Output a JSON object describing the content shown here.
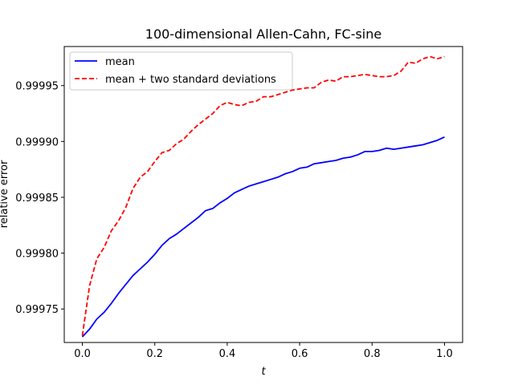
{
  "chart_data": {
    "type": "line",
    "title": "100-dimensional Allen-Cahn, FC-sine",
    "xlabel": "t",
    "ylabel": "relative error",
    "xlim": [
      -0.05,
      1.05
    ],
    "ylim": [
      0.99972,
      0.999985
    ],
    "xticks": [
      0.0,
      0.2,
      0.4,
      0.6,
      0.8,
      1.0
    ],
    "xtick_labels": [
      "0.0",
      "0.2",
      "0.4",
      "0.6",
      "0.8",
      "1.0"
    ],
    "yticks": [
      0.99975,
      0.9998,
      0.99985,
      0.9999,
      0.99995
    ],
    "ytick_labels": [
      "0.99975",
      "0.99980",
      "0.99985",
      "0.99990",
      "0.99995"
    ],
    "grid": false,
    "legend_position": "upper-left",
    "series": [
      {
        "name": "mean",
        "color": "#0000ff",
        "style": "solid",
        "x": [
          0.0,
          0.02,
          0.04,
          0.06,
          0.08,
          0.1,
          0.12,
          0.14,
          0.16,
          0.18,
          0.2,
          0.22,
          0.24,
          0.26,
          0.28,
          0.3,
          0.32,
          0.34,
          0.36,
          0.38,
          0.4,
          0.42,
          0.44,
          0.46,
          0.48,
          0.5,
          0.52,
          0.54,
          0.56,
          0.58,
          0.6,
          0.62,
          0.64,
          0.66,
          0.68,
          0.7,
          0.72,
          0.74,
          0.76,
          0.78,
          0.8,
          0.82,
          0.84,
          0.86,
          0.88,
          0.9,
          0.92,
          0.94,
          0.96,
          0.98,
          1.0
        ],
        "y": [
          0.999725,
          0.999732,
          0.999741,
          0.999747,
          0.999755,
          0.999764,
          0.999772,
          0.99978,
          0.999786,
          0.999792,
          0.999799,
          0.999807,
          0.999813,
          0.999817,
          0.999822,
          0.999827,
          0.999832,
          0.999838,
          0.99984,
          0.999845,
          0.999849,
          0.999854,
          0.999857,
          0.99986,
          0.999862,
          0.999864,
          0.999866,
          0.999868,
          0.999871,
          0.999873,
          0.999876,
          0.999877,
          0.99988,
          0.999881,
          0.999882,
          0.999883,
          0.999885,
          0.999886,
          0.999888,
          0.999891,
          0.999891,
          0.999892,
          0.999894,
          0.999893,
          0.999894,
          0.999895,
          0.999896,
          0.999897,
          0.999899,
          0.999901,
          0.999904
        ]
      },
      {
        "name": "mean + two standard deviations",
        "color": "#ff0000",
        "style": "dashed",
        "x": [
          0.0,
          0.02,
          0.04,
          0.06,
          0.08,
          0.1,
          0.12,
          0.14,
          0.16,
          0.18,
          0.2,
          0.22,
          0.24,
          0.26,
          0.28,
          0.3,
          0.32,
          0.34,
          0.36,
          0.38,
          0.4,
          0.42,
          0.44,
          0.46,
          0.48,
          0.5,
          0.52,
          0.54,
          0.56,
          0.58,
          0.6,
          0.62,
          0.64,
          0.66,
          0.68,
          0.7,
          0.72,
          0.74,
          0.76,
          0.78,
          0.8,
          0.82,
          0.84,
          0.86,
          0.88,
          0.9,
          0.92,
          0.94,
          0.96,
          0.98,
          1.0
        ],
        "y": [
          0.999726,
          0.999771,
          0.999795,
          0.999805,
          0.99982,
          0.999829,
          0.999841,
          0.999858,
          0.999868,
          0.999873,
          0.999882,
          0.99989,
          0.999892,
          0.999898,
          0.999902,
          0.999909,
          0.999915,
          0.99992,
          0.999925,
          0.999932,
          0.999935,
          0.999933,
          0.999932,
          0.999935,
          0.999936,
          0.99994,
          0.99994,
          0.999942,
          0.999944,
          0.999946,
          0.999947,
          0.999948,
          0.999948,
          0.999953,
          0.999955,
          0.999954,
          0.999958,
          0.999958,
          0.999959,
          0.99996,
          0.999959,
          0.999958,
          0.999958,
          0.999959,
          0.999963,
          0.999971,
          0.99997,
          0.999974,
          0.999976,
          0.999974,
          0.999976
        ]
      }
    ]
  }
}
